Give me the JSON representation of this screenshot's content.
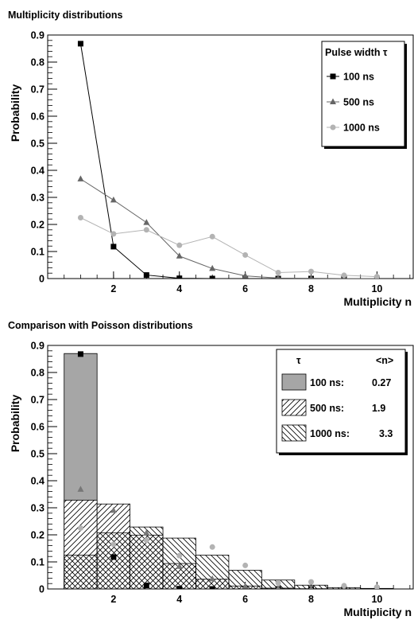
{
  "chart_data": [
    {
      "type": "line",
      "title": "Multiplicity distributions",
      "xlabel": "Multiplicity n",
      "ylabel": "Probability",
      "xlim": [
        0,
        11.1
      ],
      "ylim": [
        0,
        0.9
      ],
      "xticks": [
        2,
        4,
        6,
        8,
        10
      ],
      "yticks": [
        0,
        0.1,
        0.2,
        0.3,
        0.4,
        0.5,
        0.6,
        0.7,
        0.8,
        0.9
      ],
      "ytick_labels": [
        "0",
        "0.1",
        "0.2",
        "0.3",
        "0.4",
        "0.5",
        "0.6",
        "0.7",
        "0.8",
        "0.9"
      ],
      "grid": false,
      "legend": {
        "title": "Pulse width τ",
        "position": "top-right"
      },
      "x": [
        1,
        2,
        3,
        4,
        5,
        6,
        7,
        8,
        9,
        10
      ],
      "series": [
        {
          "name": "100 ns",
          "marker": "square",
          "color": "#000000",
          "values": [
            0.868,
            0.118,
            0.013,
            0.001,
            0.0,
            0.0,
            0.0,
            0.0,
            0.0,
            0.0
          ]
        },
        {
          "name": "500 ns",
          "marker": "triangle",
          "color": "#666666",
          "values": [
            0.368,
            0.29,
            0.207,
            0.083,
            0.037,
            0.01,
            0.002,
            0.001,
            0.0,
            0.0
          ]
        },
        {
          "name": "1000 ns",
          "marker": "circle",
          "color": "#b3b3b3",
          "values": [
            0.225,
            0.165,
            0.18,
            0.123,
            0.155,
            0.087,
            0.022,
            0.026,
            0.012,
            0.007
          ]
        }
      ]
    },
    {
      "type": "bar",
      "title": "Comparison with Poisson distributions",
      "xlabel": "Multiplicity n",
      "ylabel": "Probability",
      "xlim": [
        0,
        11.1
      ],
      "ylim": [
        0,
        0.9
      ],
      "xticks": [
        2,
        4,
        6,
        8,
        10
      ],
      "yticks": [
        0,
        0.1,
        0.2,
        0.3,
        0.4,
        0.5,
        0.6,
        0.7,
        0.8,
        0.9
      ],
      "ytick_labels": [
        "0",
        "0.1",
        "0.2",
        "0.3",
        "0.4",
        "0.5",
        "0.6",
        "0.7",
        "0.8",
        "0.9"
      ],
      "grid": false,
      "legend": {
        "title": "τ",
        "title_mean": "<n>",
        "position": "top-right"
      },
      "bin_edges": [
        0.5,
        1.5,
        2.5,
        3.5,
        4.5,
        5.5,
        6.5,
        7.5,
        8.5,
        9.5,
        10.5
      ],
      "series": [
        {
          "name": "100 ns:",
          "mean": "0.27",
          "fill": "solid",
          "color": "#a6a6a6",
          "values": [
            0.87,
            0.118,
            0.011,
            0.001,
            0.0,
            0.0,
            0.0,
            0.0,
            0.0,
            0.0
          ]
        },
        {
          "name": "500 ns:",
          "mean": "1.9",
          "fill": "hatch-diagonal",
          "color": "#000000",
          "values": [
            0.328,
            0.314,
            0.199,
            0.094,
            0.036,
            0.011,
            0.003,
            0.001,
            0.0,
            0.0
          ]
        },
        {
          "name": "1000 ns:",
          "mean": "3.3",
          "fill": "hatch-cross",
          "color": "#000000",
          "values": [
            0.125,
            0.207,
            0.229,
            0.188,
            0.125,
            0.069,
            0.033,
            0.014,
            0.005,
            0.002
          ]
        }
      ],
      "data_points": [
        {
          "name": "100 ns",
          "marker": "square",
          "color": "#000000",
          "values": [
            0.868,
            0.118,
            0.013,
            0.001,
            0.0,
            0.0,
            0.0,
            0.0,
            0.0,
            0.0
          ]
        },
        {
          "name": "500 ns",
          "marker": "triangle",
          "color": "#777777",
          "values": [
            0.368,
            0.29,
            0.207,
            0.083,
            0.037,
            0.01,
            0.002,
            0.001,
            0.0,
            0.0
          ]
        },
        {
          "name": "1000 ns",
          "marker": "circle",
          "color": "#b3b3b3",
          "values": [
            0.225,
            0.165,
            0.18,
            0.123,
            0.155,
            0.087,
            0.022,
            0.026,
            0.012,
            0.007
          ]
        }
      ]
    }
  ]
}
